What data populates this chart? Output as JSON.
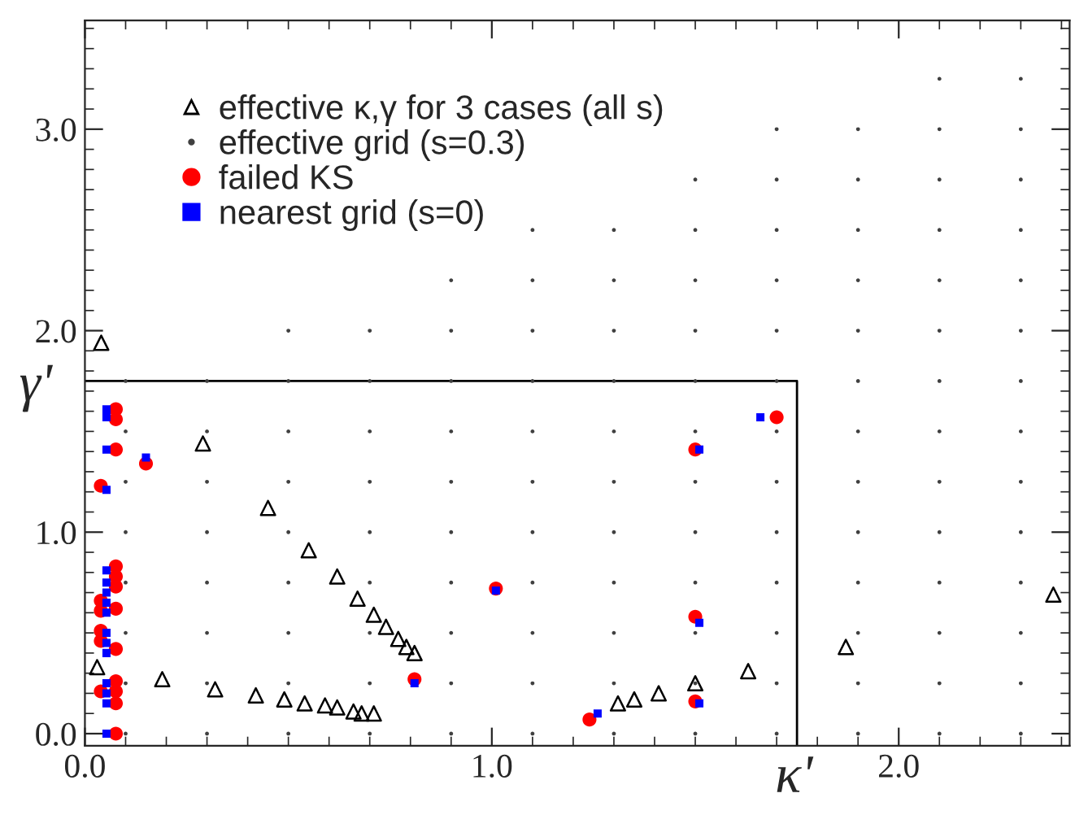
{
  "chart_data": {
    "type": "scatter",
    "xlabel": "κ'",
    "ylabel": "γ'",
    "xlim": [
      0,
      2.42
    ],
    "ylim": [
      -0.06,
      3.54
    ],
    "xticks": [
      {
        "value": 0,
        "label": "0.0"
      },
      {
        "value": 1,
        "label": "1.0"
      },
      {
        "value": 2,
        "label": "2.0"
      }
    ],
    "yticks": [
      {
        "value": 0,
        "label": "0.0"
      },
      {
        "value": 1,
        "label": "1.0"
      },
      {
        "value": 2,
        "label": "2.0"
      },
      {
        "value": 3,
        "label": "3.0"
      }
    ],
    "legend": "top left",
    "grid": false,
    "series": [
      {
        "name": "effective κ,γ for 3 cases (all s)",
        "marker": "triangle",
        "color": "#000000",
        "x": [
          0.04,
          0.29,
          0.45,
          0.55,
          0.62,
          0.67,
          0.71,
          0.74,
          0.77,
          0.79,
          0.81,
          0.03,
          0.19,
          0.32,
          0.42,
          0.49,
          0.54,
          0.59,
          0.62,
          0.66,
          0.68,
          0.71,
          1.31,
          1.35,
          1.41,
          1.5,
          1.63,
          1.87,
          2.38
        ],
        "values": [
          1.94,
          1.44,
          1.12,
          0.91,
          0.78,
          0.67,
          0.59,
          0.53,
          0.47,
          0.43,
          0.4,
          0.33,
          0.27,
          0.22,
          0.19,
          0.17,
          0.15,
          0.14,
          0.13,
          0.11,
          0.1,
          0.1,
          0.15,
          0.17,
          0.2,
          0.25,
          0.31,
          0.43,
          0.69
        ]
      },
      {
        "name": "effective grid (s=0.3)",
        "type": "scatter",
        "marker": "circle",
        "color": "#404040",
        "x": [
          0.1,
          0.1,
          0.1,
          0.1,
          0.1,
          0.1,
          0.1,
          0.1,
          0.3,
          0.3,
          0.3,
          0.3,
          0.3,
          0.3,
          0.3,
          0.3,
          0.5,
          0.5,
          0.5,
          0.5,
          0.5,
          0.5,
          0.5,
          0.5,
          0.5,
          0.7,
          0.7,
          0.7,
          0.7,
          0.7,
          0.7,
          0.7,
          0.7,
          0.7,
          0.9,
          0.9,
          0.9,
          0.9,
          0.9,
          0.9,
          0.9,
          0.9,
          0.9,
          0.9,
          1.1,
          1.1,
          1.1,
          1.1,
          1.1,
          1.1,
          1.1,
          1.1,
          1.1,
          1.1,
          1.1,
          1.3,
          1.3,
          1.3,
          1.3,
          1.3,
          1.3,
          1.3,
          1.3,
          1.3,
          1.3,
          1.3,
          1.5,
          1.5,
          1.5,
          1.5,
          1.5,
          1.5,
          1.5,
          1.5,
          1.5,
          1.5,
          1.5,
          1.5,
          1.7,
          1.7,
          1.7,
          1.7,
          1.7,
          1.7,
          1.7,
          1.7,
          1.7,
          1.7,
          1.7,
          1.7,
          1.7,
          1.9,
          1.9,
          1.9,
          1.9,
          1.9,
          1.9,
          1.9,
          1.9,
          1.9,
          1.9,
          1.9,
          1.9,
          1.9,
          2.1,
          2.1,
          2.1,
          2.1,
          2.1,
          2.1,
          2.1,
          2.1,
          2.1,
          2.1,
          2.1,
          2.1,
          2.1,
          2.1,
          2.3,
          2.3,
          2.3,
          2.3,
          2.3,
          2.3,
          2.3,
          2.3,
          2.3,
          2.3,
          2.3,
          2.3,
          2.3,
          2.3
        ],
        "values": [
          0,
          0.25,
          0.5,
          0.75,
          1,
          1.25,
          1.5,
          1.75,
          0,
          0.25,
          0.5,
          0.75,
          1,
          1.25,
          1.5,
          1.75,
          0,
          0.25,
          0.5,
          0.75,
          1,
          1.25,
          1.5,
          1.75,
          2,
          0,
          0.25,
          0.5,
          0.75,
          1,
          1.25,
          1.5,
          1.75,
          2,
          0,
          0.25,
          0.5,
          0.75,
          1,
          1.25,
          1.5,
          1.75,
          2,
          2.25,
          0,
          0.25,
          0.5,
          0.75,
          1,
          1.25,
          1.5,
          1.75,
          2,
          2.25,
          2.5,
          0,
          0.25,
          0.5,
          0.75,
          1,
          1.25,
          1.5,
          1.75,
          2,
          2.25,
          2.5,
          0,
          0.25,
          0.5,
          0.75,
          1,
          1.25,
          1.5,
          1.75,
          2,
          2.25,
          2.5,
          2.75,
          0,
          0.25,
          0.5,
          0.75,
          1,
          1.25,
          1.5,
          1.75,
          2,
          2.25,
          2.5,
          2.75,
          3,
          0,
          0.25,
          0.5,
          0.75,
          1,
          1.25,
          1.5,
          1.75,
          2,
          2.25,
          2.5,
          2.75,
          3,
          0,
          0.25,
          0.5,
          0.75,
          1,
          1.25,
          1.5,
          1.75,
          2,
          2.25,
          2.5,
          2.75,
          3,
          3.25,
          0,
          0.25,
          0.5,
          0.75,
          1,
          1.25,
          1.5,
          1.75,
          2,
          2.25,
          2.5,
          2.75,
          3,
          3.25
        ]
      },
      {
        "name": "failed KS",
        "type": "scatter",
        "marker": "circle",
        "color": "#ff0000",
        "x": [
          0.076,
          0.076,
          0.076,
          0.076,
          0.076,
          0.076,
          0.076,
          0.076,
          0.076,
          0.076,
          0.076,
          0.076,
          0.039,
          0.039,
          0.039,
          0.039,
          0.039,
          0.039,
          0.15,
          0.81,
          1.01,
          1.7,
          1.5,
          1.5,
          1.5,
          1.24
        ],
        "values": [
          1.61,
          1.56,
          1.41,
          0.83,
          0.78,
          0.73,
          0.62,
          0.42,
          0.26,
          0.21,
          0.15,
          0,
          1.23,
          0.66,
          0.61,
          0.51,
          0.46,
          0.21,
          1.34,
          0.27,
          0.72,
          1.57,
          1.41,
          0.58,
          0.16,
          0.07
        ]
      },
      {
        "name": "nearest grid (s=0)",
        "type": "scatter",
        "marker": "square",
        "color": "#0000ff",
        "x": [
          0.053,
          0.053,
          0.053,
          0.053,
          0.053,
          0.053,
          0.053,
          0.053,
          0.053,
          0.053,
          0.053,
          0.053,
          0.053,
          0.053,
          0.053,
          0.053,
          0.15,
          0.81,
          1.01,
          1.66,
          1.51,
          1.51,
          1.51,
          1.26
        ],
        "values": [
          1.61,
          1.57,
          1.41,
          1.21,
          0.81,
          0.75,
          0.7,
          0.65,
          0.6,
          0.5,
          0.45,
          0.4,
          0.25,
          0.2,
          0.15,
          0,
          1.37,
          0.25,
          0.71,
          1.57,
          1.41,
          0.55,
          0.15,
          0.1
        ]
      },
      {
        "type": "line",
        "color": "#000000",
        "line_style": "solid",
        "marker": "none",
        "x": [
          0,
          1.75,
          1.75
        ],
        "values": [
          1.75,
          1.75,
          -0.06
        ]
      }
    ]
  }
}
